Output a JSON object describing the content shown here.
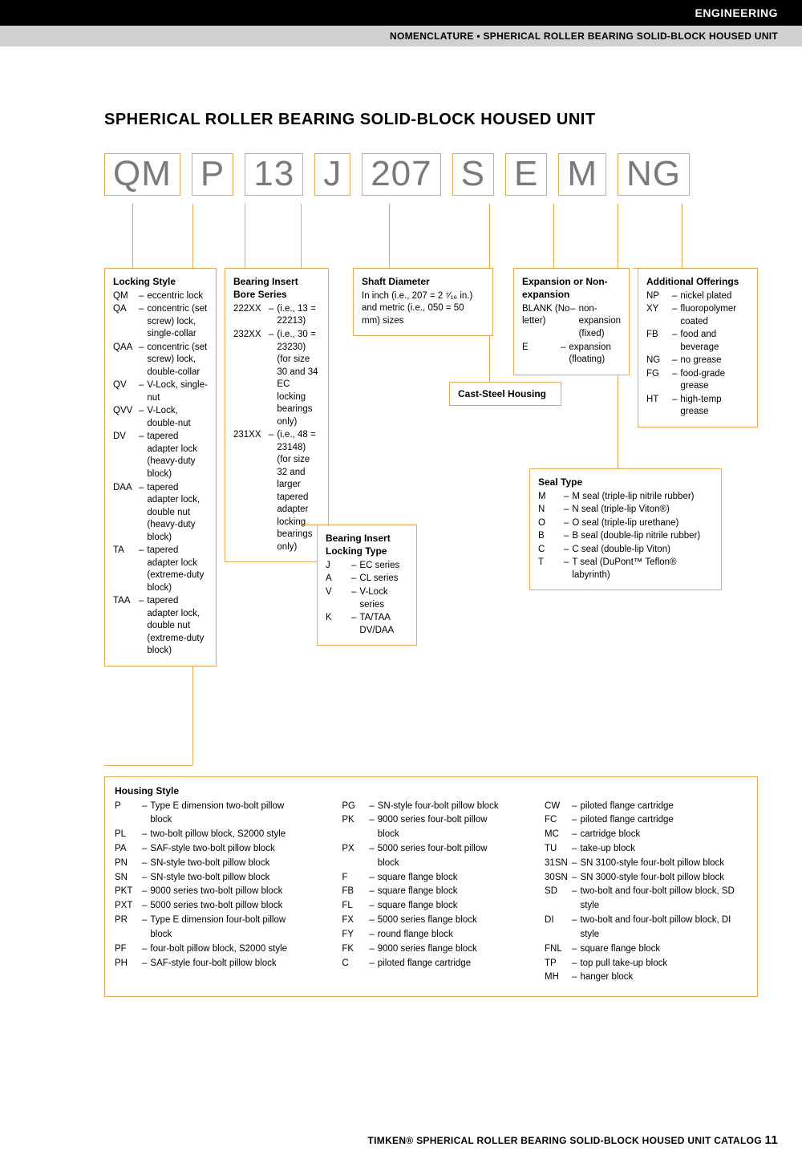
{
  "header": {
    "black": "ENGINEERING",
    "grey": "NOMENCLATURE • SPHERICAL ROLLER BEARING SOLID-BLOCK HOUSED UNIT"
  },
  "title": "SPHERICAL ROLLER BEARING SOLID-BLOCK HOUSED UNIT",
  "segments": [
    "QM",
    "P",
    "13",
    "J",
    "207",
    "S",
    "E",
    "M",
    "NG"
  ],
  "locking_style": {
    "heading": "Locking Style",
    "items": [
      [
        "QM",
        "eccentric lock"
      ],
      [
        "QA",
        "concentric (set screw) lock, single-collar"
      ],
      [
        "QAA",
        "concentric (set screw) lock, double-collar"
      ],
      [
        "QV",
        "V-Lock, single-nut"
      ],
      [
        "QVV",
        "V-Lock, double-nut"
      ],
      [
        "DV",
        "tapered adapter lock (heavy-duty block)"
      ],
      [
        "DAA",
        "tapered adapter lock, double nut (heavy-duty block)"
      ],
      [
        "TA",
        "tapered adapter lock (extreme-duty block)"
      ],
      [
        "TAA",
        "tapered adapter lock, double nut (extreme-duty block)"
      ]
    ]
  },
  "bore_series": {
    "heading": "Bearing Insert Bore Series",
    "items": [
      [
        "222XX",
        "(i.e., 13 = 22213)"
      ],
      [
        "232XX",
        "(i.e., 30 = 23230) (for size 30 and 34 EC locking bearings only)"
      ],
      [
        "231XX",
        "(i.e., 48 = 23148) (for size 32 and larger tapered adapter locking bearings only)"
      ]
    ]
  },
  "shaft": {
    "heading": "Shaft Diameter",
    "text": "In inch (i.e., 207 = 2 ⁷⁄₁₆ in.) and metric (i.e., 050 = 50 mm) sizes"
  },
  "cast": "Cast-Steel Housing",
  "expansion": {
    "heading": "Expansion or Non-expansion",
    "items": [
      [
        "BLANK (No letter)",
        "non-expansion (fixed)"
      ],
      [
        "E",
        "expansion (floating)"
      ]
    ]
  },
  "additional": {
    "heading": "Additional Offerings",
    "items": [
      [
        "NP",
        "nickel plated"
      ],
      [
        "XY",
        "fluoropolymer coated"
      ],
      [
        "FB",
        "food and beverage"
      ],
      [
        "NG",
        "no grease"
      ],
      [
        "FG",
        "food-grade grease"
      ],
      [
        "HT",
        "high-temp grease"
      ]
    ]
  },
  "locking_type": {
    "heading": "Bearing Insert Locking Type",
    "items": [
      [
        "J",
        "EC series"
      ],
      [
        "A",
        "CL series"
      ],
      [
        "V",
        "V-Lock series"
      ],
      [
        "K",
        "TA/TAA DV/DAA"
      ]
    ]
  },
  "seal": {
    "heading": "Seal Type",
    "items": [
      [
        "M",
        "M seal (triple-lip nitrile rubber)"
      ],
      [
        "N",
        "N seal (triple-lip Viton®)"
      ],
      [
        "O",
        "O seal (triple-lip urethane)"
      ],
      [
        "B",
        "B seal (double-lip nitrile rubber)"
      ],
      [
        "C",
        "C seal (double-lip Viton)"
      ],
      [
        "T",
        "T seal (DuPont™ Teflon® labyrinth)"
      ]
    ]
  },
  "housing": {
    "heading": "Housing Style",
    "col1": [
      [
        "P",
        "Type E dimension two-bolt pillow block"
      ],
      [
        "PL",
        "two-bolt pillow block, S2000 style"
      ],
      [
        "PA",
        "SAF-style two-bolt pillow block"
      ],
      [
        "PN",
        "SN-style two-bolt pillow block"
      ],
      [
        "SN",
        "SN-style two-bolt pillow block"
      ],
      [
        "PKT",
        "9000 series two-bolt pillow block"
      ],
      [
        "PXT",
        "5000 series two-bolt pillow block"
      ],
      [
        "PR",
        "Type E dimension four-bolt pillow block"
      ],
      [
        "PF",
        "four-bolt pillow block, S2000 style"
      ],
      [
        "PH",
        "SAF-style four-bolt pillow block"
      ]
    ],
    "col2": [
      [
        "PG",
        "SN-style four-bolt pillow block"
      ],
      [
        "PK",
        "9000 series four-bolt pillow block"
      ],
      [
        "PX",
        "5000 series four-bolt pillow block"
      ],
      [
        "F",
        "square flange block"
      ],
      [
        "FB",
        "square flange block"
      ],
      [
        "FL",
        "square flange block"
      ],
      [
        "FX",
        "5000 series flange block"
      ],
      [
        "FY",
        "round flange block"
      ],
      [
        "FK",
        "9000 series flange block"
      ],
      [
        "C",
        "piloted flange cartridge"
      ]
    ],
    "col3": [
      [
        "CW",
        "piloted flange cartridge"
      ],
      [
        "FC",
        "piloted flange cartridge"
      ],
      [
        "MC",
        "cartridge block"
      ],
      [
        "TU",
        "take-up block"
      ],
      [
        "31SN",
        "SN 3100-style four-bolt pillow block"
      ],
      [
        "30SN",
        "SN 3000-style four-bolt pillow block"
      ],
      [
        "SD",
        "two-bolt and four-bolt pillow block, SD style"
      ],
      [
        "DI",
        "two-bolt and four-bolt pillow block, DI style"
      ],
      [
        "FNL",
        "square flange block"
      ],
      [
        "TP",
        "top pull take-up block"
      ],
      [
        "MH",
        "hanger block"
      ]
    ]
  },
  "footer": {
    "text": "TIMKEN® SPHERICAL ROLLER BEARING SOLID-BLOCK HOUSED UNIT CATALOG",
    "page": "11"
  },
  "colors": {
    "frame": "#e6a756",
    "seg_text": "#7a7a7a"
  }
}
